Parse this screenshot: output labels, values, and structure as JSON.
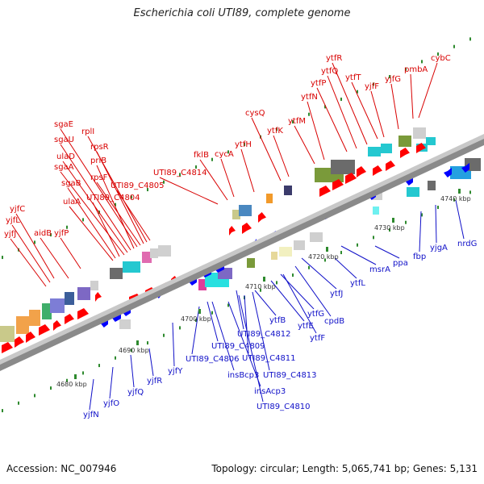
{
  "title": "Escherichia coli UTI89, complete genome",
  "accession_label": "Accession: NC_007946",
  "summary_label": "Topology: circular; Length: 5,065,741 bp; Genes: 5,131",
  "colors": {
    "forward_label": "#d80000",
    "reverse_label": "#1010c8",
    "forward_arrow": "#ff0000",
    "reverse_arrow": "#0000ff",
    "backbone": "#8a8a8a",
    "tick_dot": "#2e8a2e"
  },
  "scale_ticks": [
    "4680 kbp",
    "4690 kbp",
    "4700 kbp",
    "4710 kbp",
    "4720 kbp",
    "4730 kbp",
    "4740 kbp"
  ],
  "forward_genes": [
    "yjfJ",
    "yjfL",
    "yjfC",
    "aidB",
    "yjfP",
    "ulaA",
    "sgaB",
    "UTI89_C4804",
    "sgaA",
    "ulaD",
    "sgaU",
    "priB",
    "sgaE",
    "rpsF",
    "rpsR",
    "rplI",
    "UTI89_C4805",
    "UTI89_C4814",
    "fklB",
    "cycA",
    "ytfH",
    "cysQ",
    "ytfK",
    "ytfM",
    "ytfN",
    "ytfP",
    "ytfQ",
    "ytfR",
    "ytfT",
    "yjfF",
    "yjfG",
    "pmbA",
    "cybC"
  ],
  "reverse_genes": [
    "yjfN",
    "yjfO",
    "yjfQ",
    "yjfR",
    "yjfY",
    "UTI89_C4806",
    "UTI89_C4809",
    "insBcp3",
    "UTI89_C4812",
    "insAcp3",
    "UTI89_C4810",
    "UTI89_C4811",
    "UTI89_C4813",
    "ytfB",
    "ytfE",
    "ytfF",
    "ytfG",
    "cpdB",
    "ytfJ",
    "ytfL",
    "msrA",
    "ppa",
    "fbp",
    "yjgA",
    "nrdG"
  ]
}
